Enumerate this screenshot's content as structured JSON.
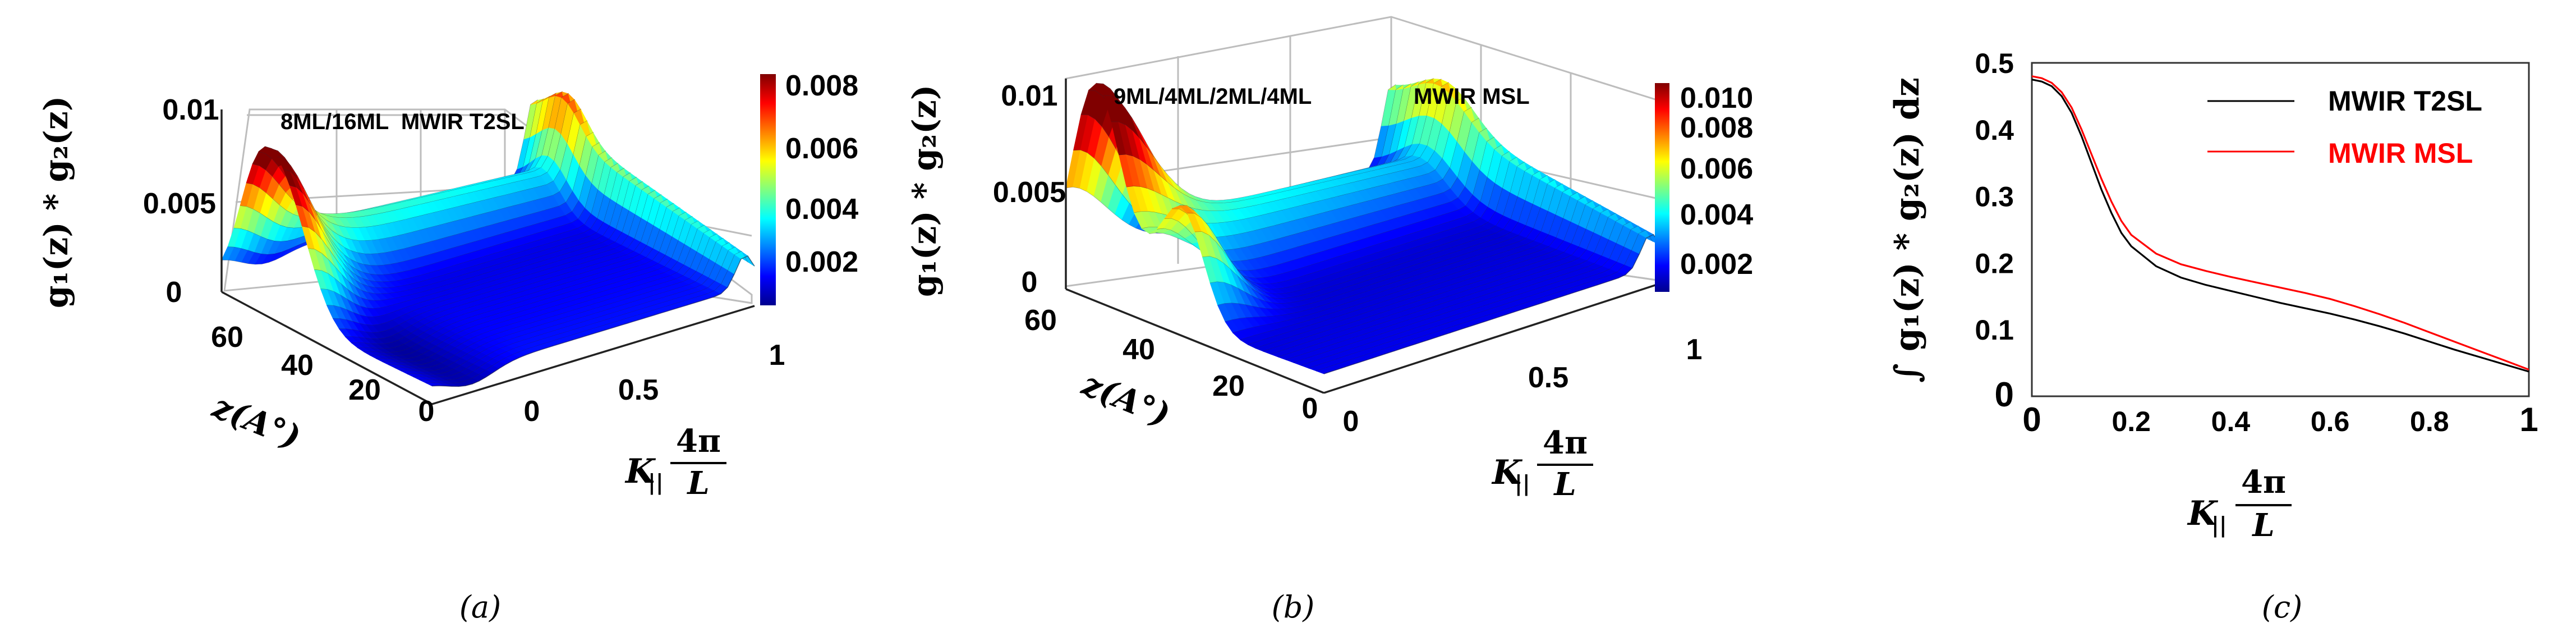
{
  "chart_data": [
    {
      "panel": "a",
      "type": "surface",
      "title": "8ML/16ML  MWIR T2SL",
      "caption": "(a)",
      "zlabel": "g₁(z) * g₂(z)",
      "xlabel_main": "K",
      "xlabel_sub": "||",
      "xlabel_num": "4π",
      "xlabel_den": "L",
      "ylabel": "z(A°)",
      "zticks": [
        "0",
        "0.005",
        "0.01"
      ],
      "xticks": [
        "0",
        "0.5",
        "1"
      ],
      "yticks": [
        "0",
        "20",
        "40",
        "60"
      ],
      "colorbar_ticks": [
        "0.002",
        "0.004",
        "0.006",
        "0.008"
      ],
      "zlim": [
        0,
        0.01
      ],
      "xlim": [
        0,
        1
      ],
      "ylim": [
        0,
        64
      ]
    },
    {
      "panel": "b",
      "type": "surface",
      "title_left": "9ML/4ML/2ML/4ML",
      "title_right": "MWIR MSL",
      "caption": "(b)",
      "zlabel": "g₁(z) * g₂(z)",
      "xlabel_main": "K",
      "xlabel_sub": "||",
      "xlabel_num": "4π",
      "xlabel_den": "L",
      "ylabel": "z(A°)",
      "zticks": [
        "0",
        "0.005",
        "0.01"
      ],
      "xticks": [
        "0",
        "0.5",
        "1"
      ],
      "yticks": [
        "0",
        "20",
        "40",
        "60"
      ],
      "colorbar_ticks": [
        "0.002",
        "0.004",
        "0.006",
        "0.008",
        "0.010"
      ],
      "zlim": [
        0,
        0.011
      ],
      "xlim": [
        0,
        1
      ],
      "ylim": [
        0,
        64
      ]
    },
    {
      "panel": "c",
      "type": "line",
      "caption": "(c)",
      "ylabel": "∫ g₁(z) * g₂(z) dz",
      "xlabel_main": "K",
      "xlabel_sub": "||",
      "xlabel_num": "4π",
      "xlabel_den": "L",
      "xlim": [
        0,
        1
      ],
      "ylim": [
        0,
        0.5
      ],
      "xticks": [
        "0",
        "0.2",
        "0.4",
        "0.6",
        "0.8",
        "1"
      ],
      "yticks": [
        "0",
        "0.1",
        "0.2",
        "0.3",
        "0.4",
        "0.5"
      ],
      "series": [
        {
          "name": "MWIR T2SL",
          "color": "#000000",
          "x": [
            0,
            0.02,
            0.04,
            0.06,
            0.08,
            0.1,
            0.12,
            0.14,
            0.16,
            0.18,
            0.2,
            0.25,
            0.3,
            0.35,
            0.4,
            0.45,
            0.5,
            0.55,
            0.6,
            0.65,
            0.7,
            0.75,
            0.8,
            0.85,
            0.9,
            0.95,
            1.0
          ],
          "y": [
            0.475,
            0.472,
            0.465,
            0.45,
            0.425,
            0.39,
            0.35,
            0.31,
            0.275,
            0.245,
            0.225,
            0.195,
            0.178,
            0.167,
            0.158,
            0.149,
            0.14,
            0.132,
            0.124,
            0.115,
            0.105,
            0.094,
            0.082,
            0.07,
            0.059,
            0.048,
            0.037
          ]
        },
        {
          "name": "MWIR MSL",
          "color": "#ff0000",
          "x": [
            0,
            0.02,
            0.04,
            0.06,
            0.08,
            0.1,
            0.12,
            0.14,
            0.16,
            0.18,
            0.2,
            0.25,
            0.3,
            0.35,
            0.4,
            0.45,
            0.5,
            0.55,
            0.6,
            0.65,
            0.7,
            0.75,
            0.8,
            0.85,
            0.9,
            0.95,
            1.0
          ],
          "y": [
            0.48,
            0.477,
            0.47,
            0.456,
            0.433,
            0.4,
            0.363,
            0.326,
            0.292,
            0.263,
            0.242,
            0.214,
            0.198,
            0.188,
            0.179,
            0.171,
            0.163,
            0.155,
            0.146,
            0.135,
            0.123,
            0.11,
            0.096,
            0.082,
            0.068,
            0.054,
            0.04
          ]
        }
      ]
    }
  ]
}
